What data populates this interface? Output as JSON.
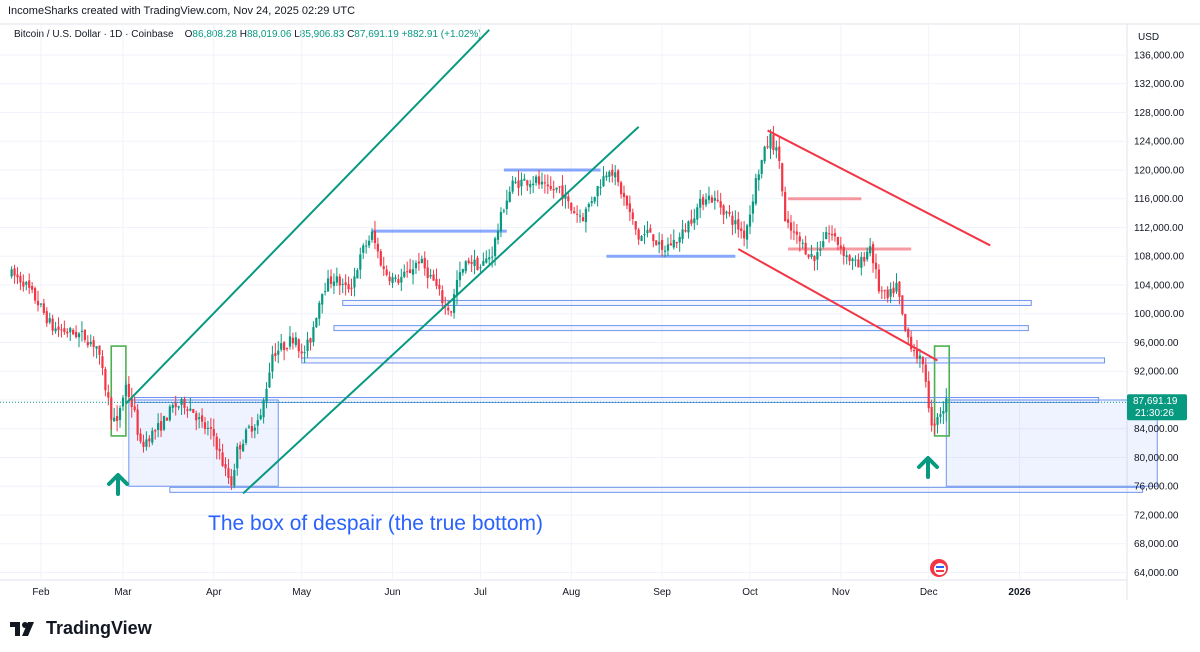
{
  "credit": "IncomeSharks created with TradingView.com, Nov 24, 2025 02:29 UTC",
  "legend": {
    "symbol": "Bitcoin / U.S. Dollar · 1D · Coinbase",
    "o_label": "O",
    "o": "86,808.28",
    "h_label": "H",
    "h": "88,019.06",
    "l_label": "L",
    "l": "85,906.83",
    "c_label": "C",
    "c": "87,691.19",
    "change": "+882.91 (+1.02%)"
  },
  "brand": {
    "name": "TradingView"
  },
  "colors": {
    "up": "#089981",
    "down": "#f23645",
    "channel": "#089981",
    "wedge": "#f23645",
    "zone": "#6f95ef",
    "annotation": "#2962ff"
  },
  "chart_data": {
    "type": "candlestick",
    "title": "Bitcoin / U.S. Dollar · 1D · Coinbase",
    "currency": "USD",
    "ylim": [
      62000,
      140000
    ],
    "y_ticks": [
      64000,
      68000,
      72000,
      76000,
      80000,
      84000,
      88000,
      92000,
      96000,
      100000,
      104000,
      108000,
      112000,
      116000,
      120000,
      124000,
      128000,
      132000,
      136000
    ],
    "y_tick_labels": [
      "64,000.00",
      "68,000.00",
      "72,000.00",
      "76,000.00",
      "80,000.00",
      "84,000.00",
      "88,000.00",
      "92,000.00",
      "96,000.00",
      "100,000.00",
      "104,000.00",
      "108,000.00",
      "112,000.00",
      "116,000.00",
      "120,000.00",
      "124,000.00",
      "128,000.00",
      "132,000.00",
      "136,000.00"
    ],
    "x_ticks": [
      {
        "label": "Feb",
        "day": 1
      },
      {
        "label": "Mar",
        "day": 29
      },
      {
        "label": "Apr",
        "day": 60
      },
      {
        "label": "May",
        "day": 90
      },
      {
        "label": "Jun",
        "day": 121
      },
      {
        "label": "Jul",
        "day": 151
      },
      {
        "label": "Aug",
        "day": 182
      },
      {
        "label": "Sep",
        "day": 213
      },
      {
        "label": "Oct",
        "day": 243
      },
      {
        "label": "Nov",
        "day": 274
      },
      {
        "label": "Dec",
        "day": 304
      },
      {
        "label": "2026",
        "day": 335
      }
    ],
    "price_path": [
      [
        -9,
        105500
      ],
      [
        -5,
        104500
      ],
      [
        0,
        101500
      ],
      [
        5,
        98000
      ],
      [
        10,
        97500
      ],
      [
        15,
        97000
      ],
      [
        20,
        95500
      ],
      [
        25,
        86000
      ],
      [
        27,
        84500
      ],
      [
        28,
        87000
      ],
      [
        30,
        90000
      ],
      [
        33,
        86000
      ],
      [
        35,
        81500
      ],
      [
        38,
        83000
      ],
      [
        42,
        84500
      ],
      [
        46,
        87000
      ],
      [
        50,
        87500
      ],
      [
        53,
        86500
      ],
      [
        56,
        84500
      ],
      [
        60,
        83000
      ],
      [
        64,
        78000
      ],
      [
        66,
        76500
      ],
      [
        68,
        81000
      ],
      [
        72,
        84000
      ],
      [
        76,
        85500
      ],
      [
        80,
        94500
      ],
      [
        84,
        95500
      ],
      [
        88,
        97000
      ],
      [
        90,
        94000
      ],
      [
        93,
        96500
      ],
      [
        97,
        103500
      ],
      [
        101,
        105000
      ],
      [
        105,
        103500
      ],
      [
        107,
        104000
      ],
      [
        111,
        109000
      ],
      [
        114,
        111000
      ],
      [
        118,
        106000
      ],
      [
        122,
        104500
      ],
      [
        126,
        105500
      ],
      [
        130,
        107500
      ],
      [
        135,
        104500
      ],
      [
        139,
        101000
      ],
      [
        141,
        100500
      ],
      [
        143,
        104500
      ],
      [
        147,
        107500
      ],
      [
        151,
        106500
      ],
      [
        155,
        108500
      ],
      [
        159,
        115000
      ],
      [
        162,
        118000
      ],
      [
        166,
        118500
      ],
      [
        170,
        118500
      ],
      [
        174,
        117000
      ],
      [
        178,
        117500
      ],
      [
        182,
        114500
      ],
      [
        186,
        113500
      ],
      [
        189,
        116000
      ],
      [
        193,
        119000
      ],
      [
        195,
        120500
      ],
      [
        197,
        119000
      ],
      [
        201,
        115000
      ],
      [
        205,
        110500
      ],
      [
        209,
        111500
      ],
      [
        213,
        108500
      ],
      [
        215,
        109500
      ],
      [
        219,
        110500
      ],
      [
        224,
        114000
      ],
      [
        228,
        116500
      ],
      [
        232,
        115500
      ],
      [
        236,
        113500
      ],
      [
        238,
        112500
      ],
      [
        241,
        111000
      ],
      [
        243,
        114000
      ],
      [
        245,
        118500
      ],
      [
        248,
        122500
      ],
      [
        250,
        124500
      ],
      [
        253,
        121500
      ],
      [
        255,
        112500
      ],
      [
        258,
        111000
      ],
      [
        261,
        109500
      ],
      [
        265,
        107500
      ],
      [
        269,
        111500
      ],
      [
        272,
        110500
      ],
      [
        276,
        108000
      ],
      [
        280,
        106500
      ],
      [
        284,
        109500
      ],
      [
        287,
        103500
      ],
      [
        290,
        102000
      ],
      [
        293,
        104000
      ],
      [
        296,
        97500
      ],
      [
        299,
        95000
      ],
      [
        301,
        93500
      ],
      [
        303,
        91000
      ],
      [
        305,
        84000
      ],
      [
        307,
        86000
      ],
      [
        309,
        86800
      ],
      [
        310,
        87691
      ]
    ],
    "last_price": 87691.19,
    "last_price_label": "87,691.19",
    "countdown": "21:30:26",
    "annotations": {
      "text": "The box of despair (the true bottom)",
      "arrows": [
        "up-arrow-mar",
        "up-arrow-nov"
      ],
      "ascending_channel": [
        {
          "from": [
            30,
            87500
          ],
          "to": [
            154,
            139500
          ]
        },
        {
          "from": [
            70,
            75000
          ],
          "to": [
            205,
            126000
          ]
        }
      ],
      "descending_wedge": [
        {
          "from": [
            249,
            125500
          ],
          "to": [
            325,
            109500
          ]
        },
        {
          "from": [
            239,
            109000
          ],
          "to": [
            307,
            93500
          ]
        }
      ],
      "support_resistance": [
        {
          "from": [
            114,
            111500
          ],
          "to": [
            160,
            111500
          ],
          "style": "line"
        },
        {
          "from": [
            159,
            120000
          ],
          "to": [
            192,
            120000
          ],
          "style": "line"
        },
        {
          "from": [
            194,
            108000
          ],
          "to": [
            238,
            108000
          ],
          "style": "line"
        },
        {
          "from": [
            256,
            116000
          ],
          "to": [
            281,
            116000
          ],
          "style": "red"
        },
        {
          "from": [
            256,
            109000
          ],
          "to": [
            298,
            109000
          ],
          "style": "red"
        },
        {
          "from": [
            104,
            101500
          ],
          "to": [
            339,
            101500
          ],
          "style": "band"
        },
        {
          "from": [
            101,
            98000
          ],
          "to": [
            338,
            98000
          ],
          "style": "band"
        },
        {
          "from": [
            90,
            93500
          ],
          "to": [
            364,
            93500
          ],
          "style": "band"
        },
        {
          "from": [
            33,
            88000
          ],
          "to": [
            362,
            88000
          ],
          "style": "band"
        },
        {
          "from": [
            45,
            75500
          ],
          "to": [
            377,
            75500
          ],
          "style": "band"
        }
      ],
      "boxes": [
        {
          "from": [
            31,
            88000
          ],
          "to": [
            82,
            76000
          ],
          "kind": "blue"
        },
        {
          "from": [
            310,
            88000
          ],
          "to": [
            382,
            76000
          ],
          "kind": "blue"
        },
        {
          "from": [
            25,
            95500
          ],
          "to": [
            30,
            83000
          ],
          "kind": "green"
        },
        {
          "from": [
            306,
            95500
          ],
          "to": [
            311,
            83000
          ],
          "kind": "green"
        }
      ]
    }
  }
}
